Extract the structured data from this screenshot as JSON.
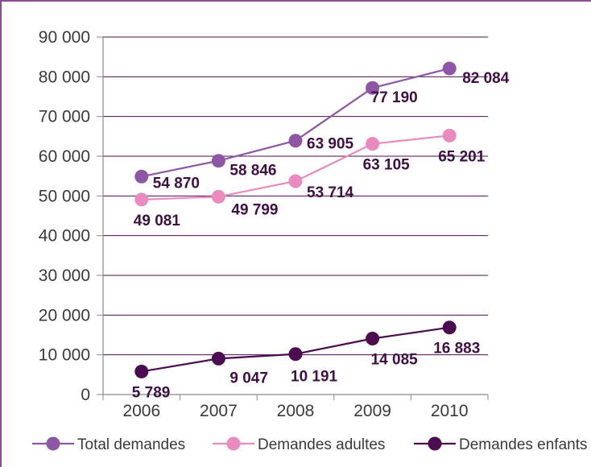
{
  "chart_data": {
    "type": "line",
    "categories": [
      "2006",
      "2007",
      "2008",
      "2009",
      "2010"
    ],
    "ylim": [
      0,
      90000
    ],
    "yticks": [
      0,
      10000,
      20000,
      30000,
      40000,
      50000,
      60000,
      70000,
      80000,
      90000
    ],
    "ytick_labels": [
      "0",
      "10 000",
      "20 000",
      "30 000",
      "40 000",
      "50 000",
      "60 000",
      "70 000",
      "80 000",
      "90 000"
    ],
    "grid": true,
    "legend_position": "bottom",
    "series": [
      {
        "name": "Total demandes",
        "color": "#8e57a6",
        "values": [
          54870,
          58846,
          63905,
          77190,
          82084
        ],
        "labels": [
          "54 870",
          "58 846",
          "63 905",
          "77 190",
          "82 084"
        ]
      },
      {
        "name": "Demandes adultes",
        "color": "#e98bbf",
        "values": [
          49081,
          49799,
          53714,
          63105,
          65201
        ],
        "labels": [
          "49 081",
          "49 799",
          "53 714",
          "63 105",
          "65 201"
        ]
      },
      {
        "name": "Demandes enfants",
        "color": "#4b0d4f",
        "values": [
          5789,
          9047,
          10191,
          14085,
          16883
        ],
        "labels": [
          "5 789",
          "9 047",
          "10 191",
          "14 085",
          "16 883"
        ]
      }
    ]
  }
}
